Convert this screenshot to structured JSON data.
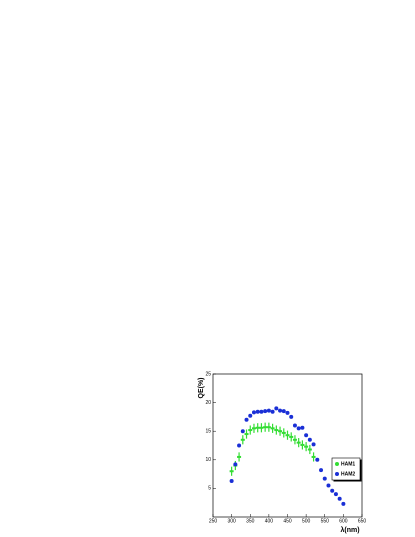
{
  "chart_data": {
    "type": "scatter",
    "x_label": "λ(nm)",
    "y_label": "QE(%)",
    "xlim": [
      250,
      650
    ],
    "xticks": [
      250,
      300,
      350,
      400,
      450,
      500,
      550,
      600,
      650
    ],
    "ylim": [
      0,
      25
    ],
    "yticks": [
      5,
      10,
      15,
      20,
      25
    ],
    "legend": "right",
    "series": [
      {
        "name": "HAM1",
        "color": "#33dd33",
        "marker": "cross",
        "x": [
          300,
          310,
          320,
          330,
          340,
          350,
          360,
          370,
          380,
          390,
          400,
          410,
          420,
          430,
          440,
          450,
          460,
          470,
          480,
          490,
          500,
          510,
          520
        ],
        "values": [
          8,
          9,
          10.5,
          13.5,
          14.5,
          15.2,
          15.5,
          15.6,
          15.6,
          15.7,
          15.7,
          15.5,
          15.2,
          15,
          14.7,
          14.3,
          14,
          13.5,
          13,
          12.6,
          12.3,
          11.8,
          10.5
        ],
        "errors": [
          0.8,
          0.8,
          0.8,
          0.8,
          0.8,
          0.8,
          0.8,
          0.8,
          0.8,
          0.8,
          0.8,
          0.8,
          0.8,
          0.8,
          0.8,
          0.8,
          0.8,
          0.8,
          0.8,
          0.8,
          0.8,
          0.8,
          0.8
        ]
      },
      {
        "name": "HAM2",
        "color": "#1a2fd6",
        "marker": "circle",
        "x": [
          300,
          310,
          320,
          330,
          340,
          350,
          360,
          370,
          380,
          390,
          400,
          410,
          420,
          430,
          440,
          450,
          460,
          470,
          480,
          490,
          500,
          510,
          520,
          530,
          540,
          550,
          560,
          570,
          580,
          590,
          600
        ],
        "values": [
          6.3,
          9.2,
          12.5,
          15,
          17,
          17.7,
          18.3,
          18.4,
          18.4,
          18.5,
          18.6,
          18.4,
          19,
          18.6,
          18.5,
          18.2,
          17.5,
          16,
          15.5,
          15.6,
          14.3,
          13.5,
          12.7,
          10,
          8.2,
          6.7,
          5.5,
          4.6,
          4,
          3.2,
          2.3
        ]
      }
    ]
  }
}
